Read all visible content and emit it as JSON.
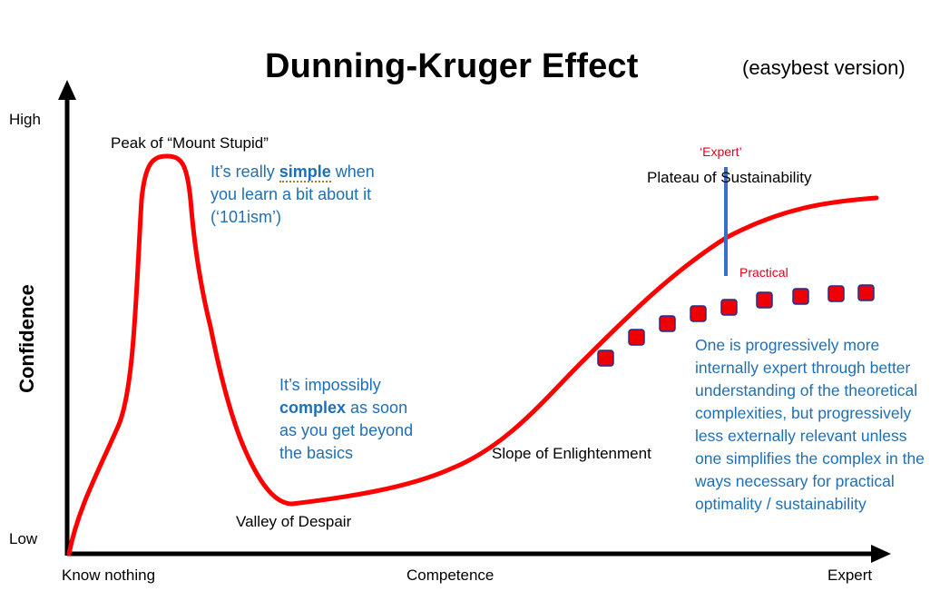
{
  "title": "Dunning-Kruger Effect",
  "subtitle": "(easybest version)",
  "axes": {
    "y_label": "Confidence",
    "y_high": "High",
    "y_low": "Low",
    "x_label": "Competence",
    "x_start": "Know nothing",
    "x_end": "Expert"
  },
  "stages": {
    "peak": "Peak of “Mount Stupid”",
    "valley": "Valley of Despair",
    "slope": "Slope of Enlightenment",
    "plateau": "Plateau of Sustainability"
  },
  "notes": {
    "simple_pre": "It’s really ",
    "simple_bold": "simple",
    "simple_post": " when you learn a bit about it (‘101ism’)",
    "complex_pre": "It’s impossibly ",
    "complex_bold": "complex",
    "complex_post": " as soon as you get beyond the basics",
    "progressive": "One is progressively more internally expert through better understanding of the theoretical complexities, but progressively less externally relevant unless one simplifies the complex in the ways necessary for practical optimality / sustainability"
  },
  "markers": {
    "expert_label": "‘Expert’",
    "practical_label": "Practical"
  },
  "colors": {
    "curve": "#ff0000",
    "note_text": "#1f6fb5",
    "marker_label": "#e3001b",
    "practical_fill": "#ee0000",
    "practical_stroke": "#1f2f8f",
    "divider": "#3a6fc9"
  }
}
